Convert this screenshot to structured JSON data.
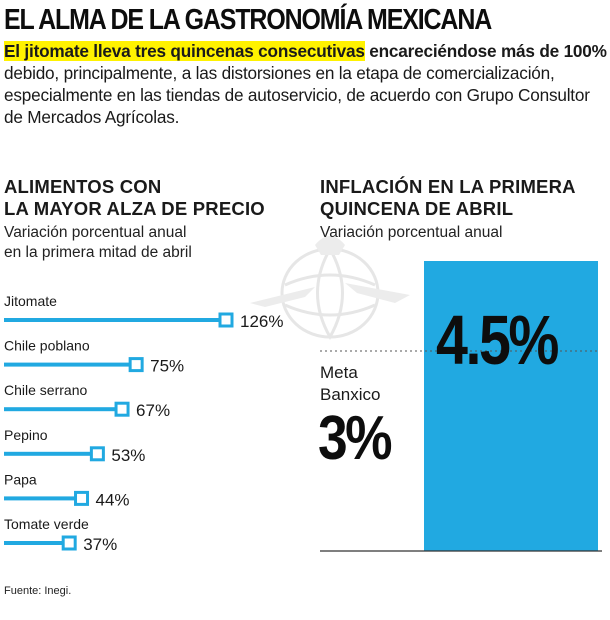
{
  "header": {
    "title": "EL ALMA DE LA GASTRONOMÍA MEXICANA",
    "intro_highlight": "El jitomate lleva tres quincenas consecutivas",
    "intro_bold": " encareciéndose más de 100%",
    "intro_rest": " debido, principalmente, a las distorsiones en la etapa de comercialización, especialmente en las tiendas de autoservicio, de acuerdo con Grupo Consultor de Mercados Agrícolas."
  },
  "colors": {
    "accent": "#21a9e1",
    "highlight": "#fff200",
    "text": "#1a1a1a"
  },
  "chart_data": [
    {
      "type": "bar",
      "orientation": "horizontal",
      "title": "ALIMENTOS CON LA MAYOR ALZA DE PRECIO",
      "title_line1": "ALIMENTOS CON",
      "title_line2": "LA MAYOR ALZA DE PRECIO",
      "subtitle_line1": "Variación porcentual anual",
      "subtitle_line2": "en la primera mitad de abril",
      "categories": [
        "Jitomate",
        "Chile poblano",
        "Chile serrano",
        "Pepino",
        "Papa",
        "Tomate verde"
      ],
      "values": [
        126,
        75,
        67,
        53,
        44,
        37
      ],
      "value_labels": [
        "126%",
        "75%",
        "67%",
        "53%",
        "44%",
        "37%"
      ],
      "unit": "%",
      "xlim": [
        0,
        126
      ]
    },
    {
      "type": "bar",
      "title": "INFLACIÓN EN LA PRIMERA QUINCENA DE ABRIL",
      "title_line1": "INFLACIÓN EN LA PRIMERA",
      "title_line2": "QUINCENA DE ABRIL",
      "subtitle": "Variación porcentual anual",
      "value": 4.5,
      "value_label": "4.5%",
      "reference_line": {
        "label_line1": "Meta",
        "label_line2": "Banxico",
        "value": 3,
        "value_label": "3%"
      },
      "ylim": [
        0,
        5
      ]
    }
  ],
  "source": "Fuente: Inegi."
}
